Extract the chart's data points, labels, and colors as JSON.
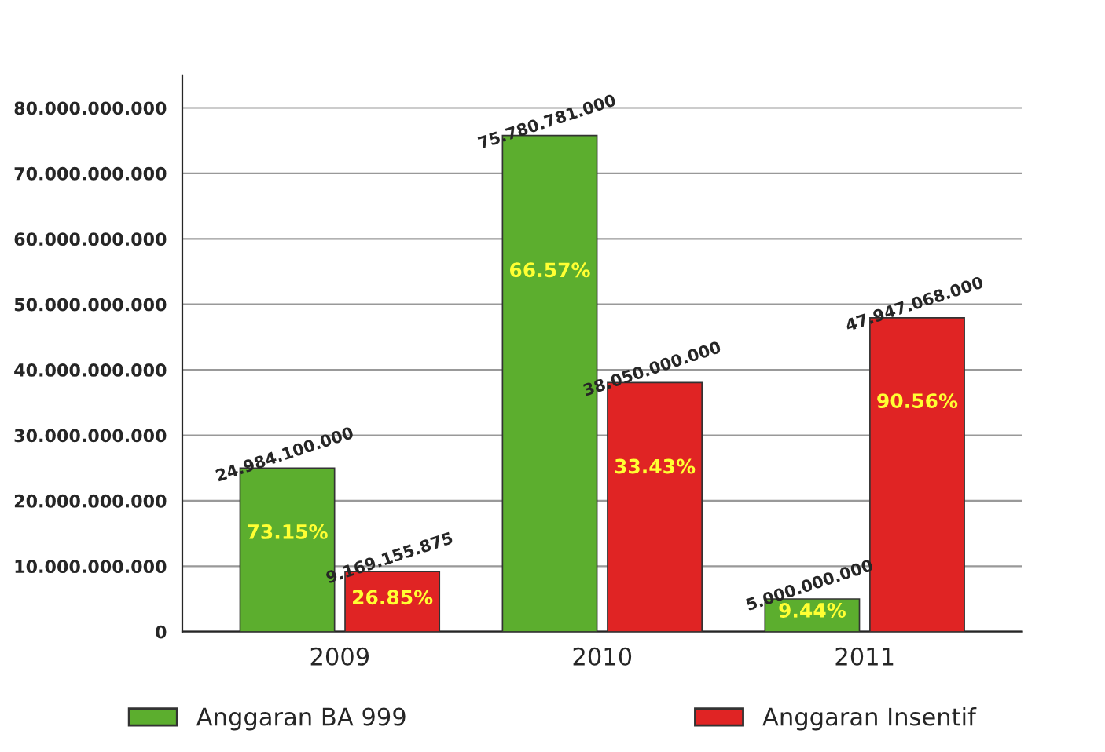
{
  "chart_data": {
    "type": "bar",
    "categories": [
      "2009",
      "2010",
      "2011"
    ],
    "series": [
      {
        "name": "Anggaran BA 999",
        "color": "#5cae2e",
        "values": [
          24984100000,
          75780781000,
          5000000000
        ],
        "value_labels": [
          "24.984.100.000",
          "75.780.781.000",
          "5.000.000.000"
        ]
      },
      {
        "name": "Anggaran Insentif",
        "color": "#e02424",
        "values": [
          9169155875,
          38050000000,
          47947068000
        ],
        "value_labels": [
          "9.169.155.875",
          "38.050.000.000",
          "47.947.068.000"
        ]
      }
    ],
    "ylim": [
      0,
      85000000000
    ],
    "yticks": [
      {
        "value": 0,
        "label": "0"
      },
      {
        "value": 10000000000,
        "label": "10.000.000.000"
      },
      {
        "value": 20000000000,
        "label": "20.000.000.000"
      },
      {
        "value": 30000000000,
        "label": "30.000.000.000"
      },
      {
        "value": 40000000000,
        "label": "40.000.000.000"
      },
      {
        "value": 50000000000,
        "label": "50.000.000.000"
      },
      {
        "value": 60000000000,
        "label": "60.000.000.000"
      },
      {
        "value": 70000000000,
        "label": "70.000.000.000"
      },
      {
        "value": 80000000000,
        "label": "80.000.000.000"
      }
    ],
    "grid": "y",
    "legend": "bottom",
    "annotations": [
      {
        "text": "73.15%",
        "x": "2009",
        "y": 15000000000
      },
      {
        "text": "26.85%",
        "x": "2009",
        "y": 5000000000
      },
      {
        "text": "66.57%",
        "x": "2010",
        "y": 55000000000
      },
      {
        "text": "33.43%",
        "x": "2010",
        "y": 25000000000
      },
      {
        "text": "9.44%",
        "x": "2011",
        "y": 3000000000
      },
      {
        "text": "90.56%",
        "x": "2011",
        "y": 35000000000
      }
    ]
  }
}
